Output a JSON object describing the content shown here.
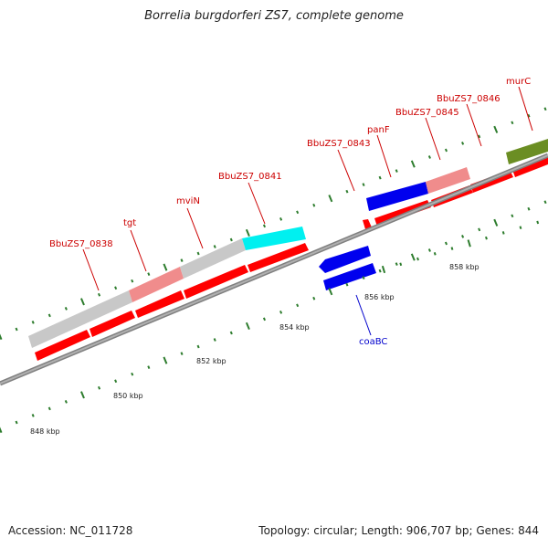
{
  "title": "Borrelia burgdorferi ZS7, complete genome",
  "footer": {
    "accession": "Accession: NC_011728",
    "summary": "Topology: circular; Length: 906,707 bp; Genes: 844"
  },
  "colors": {
    "backbone": "#8c8c8c",
    "forward_gene": "#ff0000",
    "reverse_gene": "#0000ff",
    "label_forward": "#cc0000",
    "label_reverse": "#0000cc",
    "tick": "#2e7d2e",
    "track_gray": "#c0c0c0",
    "track_pink": "#f08080",
    "track_cyan": "#00ffff",
    "track_blue": "#0000ff",
    "track_olive": "#6b8e23"
  },
  "tick_labels": [
    "848 kbp",
    "850 kbp",
    "852 kbp",
    "854 kbp",
    "856 kbp",
    "858 kbp"
  ],
  "gene_labels": {
    "forward": [
      "BbuZS7_0838",
      "tgt",
      "mviN",
      "BbuZS7_0841",
      "BbuZS7_0843",
      "panF",
      "BbuZS7_0845",
      "BbuZS7_0846",
      "murC"
    ],
    "reverse": [
      "coaBC"
    ]
  }
}
